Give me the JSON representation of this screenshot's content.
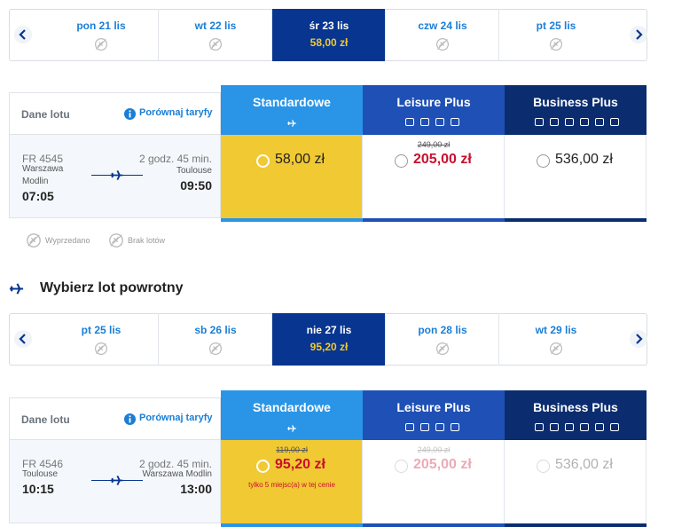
{
  "outbound": {
    "dates": [
      {
        "label": "pon 21 lis"
      },
      {
        "label": "wt 22 lis"
      },
      {
        "label": "śr 23 lis",
        "price": "58,00 zł"
      },
      {
        "label": "czw 24 lis"
      },
      {
        "label": "pt 25 lis"
      }
    ],
    "details_label": "Dane lotu",
    "compare": "Porównaj taryfy",
    "fares": [
      "Standardowe",
      "Leisure Plus",
      "Business Plus"
    ],
    "flight": {
      "number": "FR 4545",
      "duration": "2 godz. 45 min.",
      "from": "Warszawa Modlin",
      "to": "Toulouse",
      "dep": "07:05",
      "arr": "09:50"
    },
    "prices": [
      {
        "price": "58,00 zł"
      },
      {
        "old": "249,00 zł",
        "price": "205,00 zł"
      },
      {
        "price": "536,00 zł"
      }
    ]
  },
  "legend": [
    "Wyprzedano",
    "Brak lotów"
  ],
  "return_title": "Wybierz lot powrotny",
  "return": {
    "dates": [
      {
        "label": "pt 25 lis"
      },
      {
        "label": "sb 26 lis"
      },
      {
        "label": "nie 27 lis",
        "price": "95,20 zł"
      },
      {
        "label": "pon 28 lis"
      },
      {
        "label": "wt 29 lis"
      }
    ],
    "details_label": "Dane lotu",
    "compare": "Porównaj taryfy",
    "fares": [
      "Standardowe",
      "Leisure Plus",
      "Business Plus"
    ],
    "flight": {
      "number": "FR 4546",
      "duration": "2 godz. 45 min.",
      "from": "Toulouse",
      "to": "Warszawa Modlin",
      "dep": "10:15",
      "arr": "13:00"
    },
    "prices": [
      {
        "old": "119,00 zł",
        "price": "95,20 zł",
        "note": "tylko 5 miejsc(a) w tej cenie"
      },
      {
        "old": "249,00 zł",
        "price": "205,00 zł",
        "disabled": true
      },
      {
        "price": "536,00 zł",
        "disabled": true
      }
    ]
  }
}
